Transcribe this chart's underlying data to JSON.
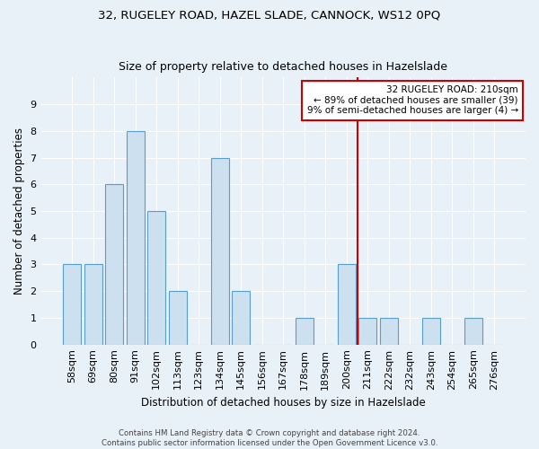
{
  "title": "32, RUGELEY ROAD, HAZEL SLADE, CANNOCK, WS12 0PQ",
  "subtitle": "Size of property relative to detached houses in Hazelslade",
  "xlabel": "Distribution of detached houses by size in Hazelslade",
  "ylabel": "Number of detached properties",
  "categories": [
    "58sqm",
    "69sqm",
    "80sqm",
    "91sqm",
    "102sqm",
    "113sqm",
    "123sqm",
    "134sqm",
    "145sqm",
    "156sqm",
    "167sqm",
    "178sqm",
    "189sqm",
    "200sqm",
    "211sqm",
    "222sqm",
    "232sqm",
    "243sqm",
    "254sqm",
    "265sqm",
    "276sqm"
  ],
  "values": [
    3,
    3,
    6,
    8,
    5,
    2,
    0,
    7,
    2,
    0,
    0,
    1,
    0,
    3,
    1,
    1,
    0,
    1,
    0,
    1,
    0
  ],
  "bar_color": "#cce0f0",
  "bar_edge_color": "#5a9ec8",
  "vline_x": 13.5,
  "vline_color": "#cc0000",
  "annotation_text": "32 RUGELEY ROAD: 210sqm\n← 89% of detached houses are smaller (39)\n9% of semi-detached houses are larger (4) →",
  "annotation_box_color": "#cc0000",
  "ylim": [
    0,
    10
  ],
  "yticks": [
    0,
    1,
    2,
    3,
    4,
    5,
    6,
    7,
    8,
    9,
    10
  ],
  "background_color": "#e8f0f8",
  "grid_color": "#d0d8e4",
  "footer": "Contains HM Land Registry data © Crown copyright and database right 2024.\nContains public sector information licensed under the Open Government Licence v3.0."
}
